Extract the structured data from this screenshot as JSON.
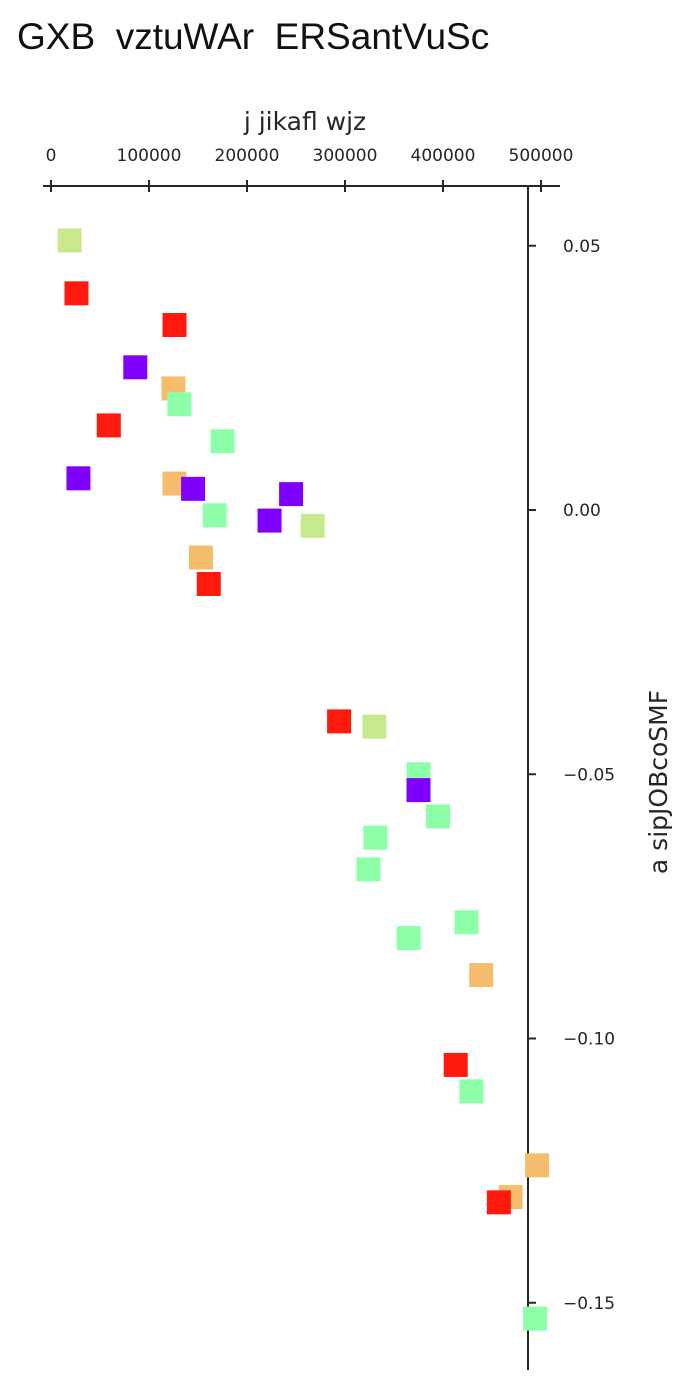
{
  "chart_data": {
    "type": "scatter",
    "title": "GXB  vztuWAr  ERSantVuSc",
    "xlabel": "j  jikafl  wjz",
    "ylabel": "a  sipJOBcoSMF",
    "x_axis_position": "top",
    "y_axis_position": "right",
    "xlim": [
      -2000,
      520000
    ],
    "ylim": [
      -0.162,
      0.062
    ],
    "xticks": [
      0,
      100000,
      200000,
      300000,
      400000,
      500000
    ],
    "xtick_labels": [
      "0",
      "100000",
      "200000",
      "300000",
      "400000",
      "500000"
    ],
    "yticks": [
      0.05,
      0.0,
      -0.05,
      -0.1,
      -0.15
    ],
    "ytick_labels": [
      "0.05",
      "0.00",
      "−0.05",
      "−0.10",
      "−0.15"
    ],
    "grid": false,
    "marker": "square",
    "colors": {
      "red": "#ff1a0d",
      "purple": "#8000ff",
      "orange": "#f5bd6b",
      "mint": "#8dffa8",
      "lime": "#c6e98b"
    },
    "points": [
      {
        "x": 19000,
        "y": 0.051,
        "color": "lime"
      },
      {
        "x": 26000,
        "y": 0.041,
        "color": "red"
      },
      {
        "x": 126000,
        "y": 0.035,
        "color": "red"
      },
      {
        "x": 86000,
        "y": 0.027,
        "color": "purple"
      },
      {
        "x": 125000,
        "y": 0.023,
        "color": "orange"
      },
      {
        "x": 131000,
        "y": 0.02,
        "color": "mint"
      },
      {
        "x": 59000,
        "y": 0.016,
        "color": "red"
      },
      {
        "x": 175000,
        "y": 0.013,
        "color": "mint"
      },
      {
        "x": 28000,
        "y": 0.006,
        "color": "purple"
      },
      {
        "x": 126000,
        "y": 0.005,
        "color": "orange"
      },
      {
        "x": 145000,
        "y": 0.004,
        "color": "purple"
      },
      {
        "x": 245000,
        "y": 0.003,
        "color": "purple"
      },
      {
        "x": 167000,
        "y": -0.001,
        "color": "mint"
      },
      {
        "x": 223000,
        "y": -0.002,
        "color": "purple"
      },
      {
        "x": 267000,
        "y": -0.003,
        "color": "lime"
      },
      {
        "x": 153000,
        "y": -0.009,
        "color": "orange"
      },
      {
        "x": 161000,
        "y": -0.014,
        "color": "red"
      },
      {
        "x": 294000,
        "y": -0.04,
        "color": "red"
      },
      {
        "x": 330000,
        "y": -0.041,
        "color": "lime"
      },
      {
        "x": 375000,
        "y": -0.05,
        "color": "mint"
      },
      {
        "x": 375000,
        "y": -0.053,
        "color": "purple"
      },
      {
        "x": 395000,
        "y": -0.058,
        "color": "mint"
      },
      {
        "x": 331000,
        "y": -0.062,
        "color": "mint"
      },
      {
        "x": 324000,
        "y": -0.068,
        "color": "mint"
      },
      {
        "x": 365000,
        "y": -0.081,
        "color": "mint"
      },
      {
        "x": 424000,
        "y": -0.078,
        "color": "mint"
      },
      {
        "x": 439000,
        "y": -0.088,
        "color": "orange"
      },
      {
        "x": 413000,
        "y": -0.105,
        "color": "red"
      },
      {
        "x": 429000,
        "y": -0.11,
        "color": "mint"
      },
      {
        "x": 496000,
        "y": -0.124,
        "color": "orange"
      },
      {
        "x": 469000,
        "y": -0.13,
        "color": "orange"
      },
      {
        "x": 457000,
        "y": -0.131,
        "color": "red"
      },
      {
        "x": 494000,
        "y": -0.153,
        "color": "mint"
      }
    ]
  }
}
